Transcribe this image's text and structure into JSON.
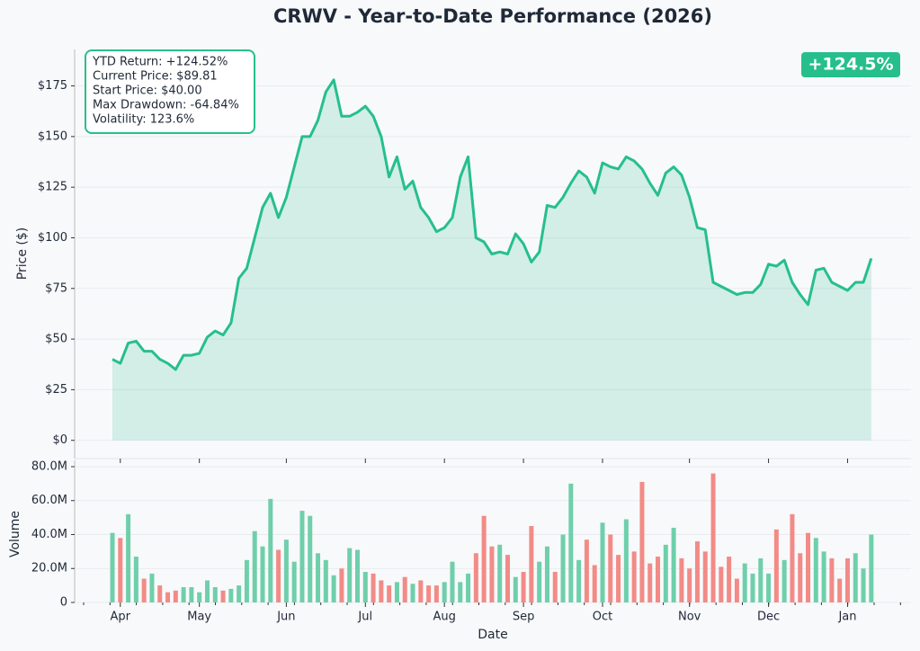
{
  "chart_data": [
    {
      "type": "line",
      "title": "CRWV - Year-to-Date Performance (2026)",
      "ylabel": "Price ($)",
      "color": "#26bf8c",
      "grid": true,
      "ylim": [
        -9,
        193
      ],
      "yticks": [
        {
          "value": 0,
          "label": "$0"
        },
        {
          "value": 25,
          "label": "$25"
        },
        {
          "value": 50,
          "label": "$50"
        },
        {
          "value": 75,
          "label": "$75"
        },
        {
          "value": 100,
          "label": "$100"
        },
        {
          "value": 125,
          "label": "$125"
        },
        {
          "value": 150,
          "label": "$150"
        },
        {
          "value": 175,
          "label": "$175"
        }
      ],
      "values": [
        40,
        38,
        48,
        49,
        44,
        44,
        40,
        38,
        35,
        42,
        42,
        43,
        51,
        54,
        52,
        58,
        80,
        85,
        100,
        115,
        122,
        110,
        120,
        135,
        150,
        150,
        158,
        172,
        178,
        160,
        160,
        162,
        165,
        160,
        150,
        130,
        140,
        124,
        128,
        115,
        110,
        103,
        105,
        110,
        130,
        140,
        100,
        98,
        92,
        93,
        92,
        102,
        97,
        88,
        93,
        116,
        115,
        120,
        127,
        133,
        130,
        122,
        137,
        135,
        134,
        140,
        138,
        134,
        127,
        121,
        132,
        135,
        131,
        120,
        105,
        104,
        78,
        76,
        74,
        72,
        73,
        73,
        77,
        87,
        86,
        89,
        78,
        72,
        67,
        84,
        85,
        78,
        76,
        74,
        78,
        78,
        89.81
      ],
      "annotations": [
        "YTD Return: +124.52%",
        "Current Price: $89.81",
        "Start Price: $40.00",
        "Max Drawdown: -64.84%",
        "Volatility: 123.6%"
      ],
      "badge": "+124.5%"
    },
    {
      "type": "bar",
      "ylabel": "Volume",
      "xlabel": "Date",
      "up_color": "#6fcfab",
      "down_color": "#f28b86",
      "grid": true,
      "ylim": [
        0,
        83700000
      ],
      "yticks": [
        0,
        {
          "value": 20000000,
          "label": "20.0M"
        },
        {
          "value": 40000000,
          "label": "40.0M"
        },
        {
          "value": 60000000,
          "label": "60.0M"
        },
        {
          "value": 80000000,
          "label": "80.0M"
        }
      ],
      "categories": [
        null,
        "Apr",
        null,
        null,
        null,
        null,
        null,
        null,
        null,
        null,
        null,
        "May",
        null,
        null,
        null,
        null,
        null,
        null,
        null,
        null,
        null,
        null,
        "Jun",
        null,
        null,
        null,
        null,
        null,
        null,
        null,
        null,
        null,
        "Jul",
        null,
        null,
        null,
        null,
        null,
        null,
        null,
        null,
        null,
        "Aug",
        null,
        null,
        null,
        null,
        null,
        null,
        null,
        null,
        null,
        "Sep",
        null,
        null,
        null,
        null,
        null,
        null,
        null,
        null,
        null,
        "Oct",
        null,
        null,
        null,
        null,
        null,
        null,
        null,
        null,
        null,
        null,
        "Nov",
        null,
        null,
        null,
        null,
        null,
        null,
        null,
        null,
        null,
        "Dec",
        null,
        null,
        null,
        null,
        null,
        null,
        null,
        null,
        null,
        "Jan",
        null,
        null,
        null
      ],
      "values": [
        41000000,
        38000000,
        52000000,
        27000000,
        14000000,
        17000000,
        10000000,
        6000000,
        7000000,
        9000000,
        9000000,
        6000000,
        13000000,
        9000000,
        7000000,
        8000000,
        10000000,
        25000000,
        42000000,
        33000000,
        61000000,
        31000000,
        37000000,
        24000000,
        54000000,
        51000000,
        29000000,
        25000000,
        16000000,
        20000000,
        32000000,
        31000000,
        18000000,
        17000000,
        13000000,
        10000000,
        12000000,
        15000000,
        11000000,
        13000000,
        10000000,
        10000000,
        12000000,
        24000000,
        12000000,
        17000000,
        29000000,
        51000000,
        33000000,
        34000000,
        28000000,
        15000000,
        18000000,
        45000000,
        24000000,
        33000000,
        18000000,
        40000000,
        70000000,
        25000000,
        37000000,
        22000000,
        47000000,
        40000000,
        28000000,
        49000000,
        30000000,
        71000000,
        23000000,
        27000000,
        34000000,
        44000000,
        26000000,
        20000000,
        36000000,
        30000000,
        76000000,
        21000000,
        27000000,
        14000000,
        23000000,
        17000000,
        26000000,
        17000000,
        43000000,
        25000000,
        52000000,
        29000000,
        41000000,
        38000000,
        30000000,
        26000000,
        14000000,
        26000000,
        29000000,
        20000000,
        40000000
      ]
    }
  ]
}
